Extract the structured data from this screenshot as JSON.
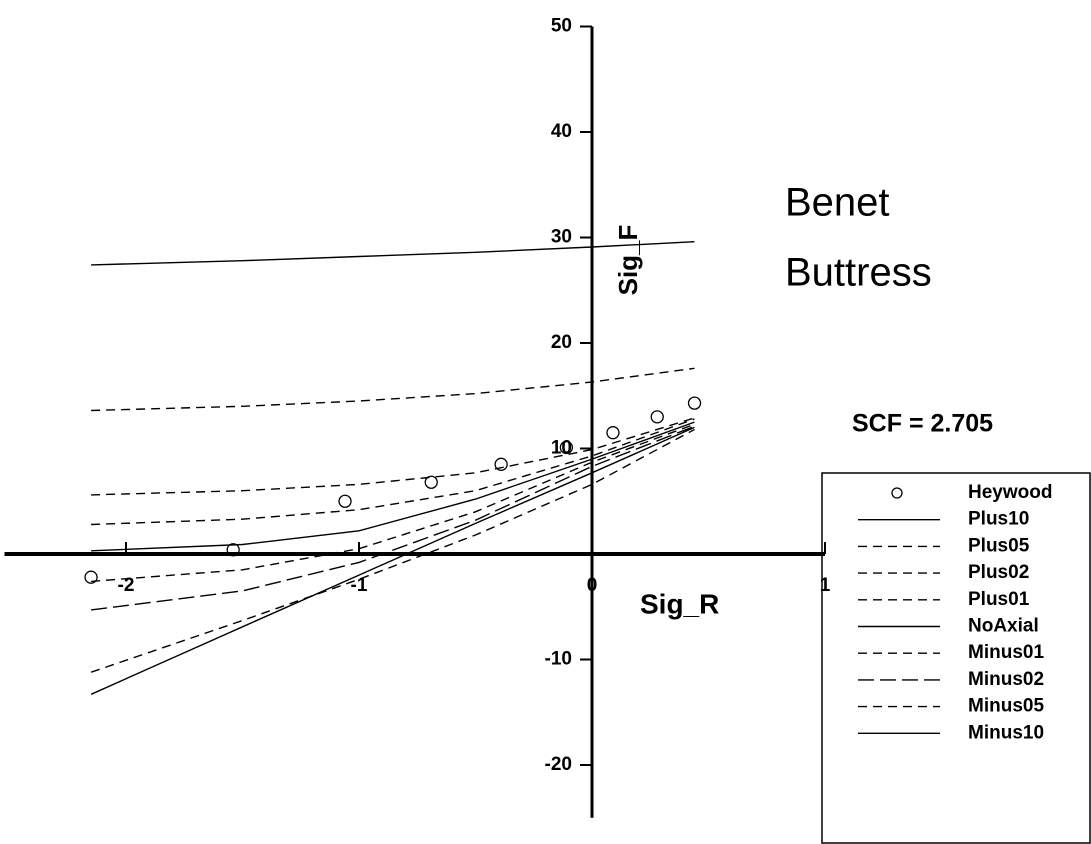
{
  "chart_data": {
    "type": "line",
    "title": [
      "Benet",
      "Buttress"
    ],
    "annotation": "SCF = 2.705",
    "x_label": "Sig_R",
    "y_label": "Sig_F",
    "xlim": [
      -2.5,
      1
    ],
    "ylim": [
      -25,
      50
    ],
    "xticks": [
      -2,
      -1,
      0,
      1
    ],
    "yticks": [
      -20,
      -10,
      10,
      20,
      30,
      40,
      50
    ],
    "x": [
      -2.15,
      -1.5,
      -1,
      -0.5,
      0,
      0.44
    ],
    "series": [
      {
        "name": "Heywood",
        "color": "#000000",
        "marker": "circle",
        "x": [
          -2.15,
          -1.54,
          -1.06,
          -0.69,
          -0.39,
          -0.11,
          0.09,
          0.28,
          0.44
        ],
        "values": [
          -2.2,
          0.4,
          5,
          6.8,
          8.5,
          10.1,
          11.5,
          13,
          14.3
        ]
      },
      {
        "name": "Plus10",
        "color": "#000000",
        "dash": "solid",
        "values": [
          27.4,
          27.8,
          28.2,
          28.6,
          29.1,
          29.6
        ]
      },
      {
        "name": "Plus05",
        "color": "#000000",
        "dash": "dashed",
        "values": [
          13.6,
          14.0,
          14.5,
          15.2,
          16.3,
          17.6
        ]
      },
      {
        "name": "Plus02",
        "color": "#000000",
        "dash": "dashed",
        "values": [
          5.6,
          6.0,
          6.6,
          7.7,
          9.9,
          12.9
        ]
      },
      {
        "name": "Plus01",
        "color": "#000000",
        "dash": "dashed",
        "values": [
          2.8,
          3.3,
          4.2,
          6.0,
          9.3,
          12.8
        ]
      },
      {
        "name": "NoAxial",
        "color": "#000000",
        "dash": "solid",
        "values": [
          0.3,
          0.9,
          2.2,
          5.2,
          9.0,
          12.5
        ]
      },
      {
        "name": "Minus01",
        "color": "#000000",
        "dash": "dashed",
        "values": [
          -2.6,
          -1.5,
          0.5,
          4.0,
          8.7,
          12.3
        ]
      },
      {
        "name": "Minus02",
        "color": "#000000",
        "dash": "long-dashed",
        "values": [
          -5.3,
          -3.5,
          -0.8,
          3.2,
          8.3,
          12.1
        ]
      },
      {
        "name": "Minus05",
        "color": "#000000",
        "dash": "dashed",
        "values": [
          -11.2,
          -6.3,
          -2.4,
          1.8,
          6.6,
          11.8
        ]
      },
      {
        "name": "Minus10",
        "color": "#000000",
        "dash": "solid",
        "values": [
          -13.3,
          -6.9,
          -2.0,
          2.9,
          7.7,
          12.0
        ]
      }
    ]
  }
}
